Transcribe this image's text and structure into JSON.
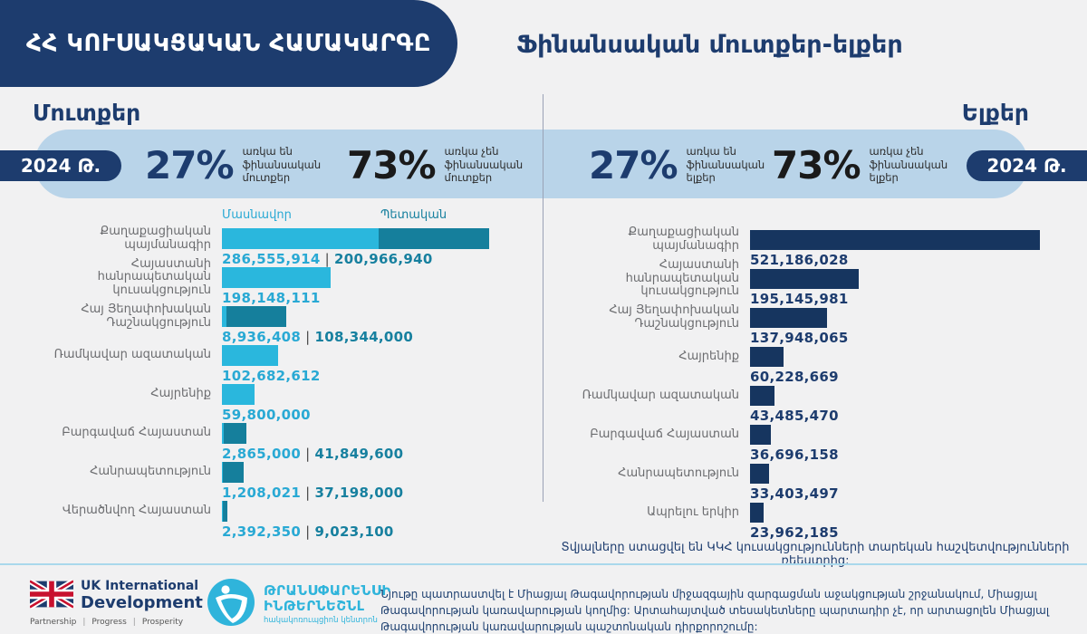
{
  "header": {
    "app_title": "ՀՀ ԿՈՒՍԱԿՑԱԿԱՆ ՀԱՄԱԿԱՐԳԸ",
    "page_title": "Ֆինանսական մուտքեր-ելքեր"
  },
  "colors": {
    "navy": "#1d3c6e",
    "navy_bar": "#16355f",
    "light_blue": "#b9d4e9",
    "cyan": "#2ab7dd",
    "teal": "#157f9c",
    "cyan_text": "#29a9d4",
    "teal_text": "#17809f",
    "pct_dark": "#1a1a1a",
    "label_gray": "#6b6c6f",
    "bg": "#f1f1f2",
    "divider": "#9aa2b6",
    "footer_line": "#a9d8ec",
    "ti_cyan": "#2fb4db",
    "uk_red": "#c8102e"
  },
  "left_section": {
    "heading": "Մուտքեր",
    "year_badge": "2024 Թ.",
    "stats": [
      {
        "value": "27%",
        "label": "առկա են ֆինանսական մուտքեր"
      },
      {
        "value": "73%",
        "label": "առկա չեն ֆինանսական մուտքեր"
      }
    ]
  },
  "right_section": {
    "heading": "Ելքեր",
    "year_badge": "2024 Թ.",
    "stats": [
      {
        "value": "27%",
        "label": "առկա են ֆինանսական ելքեր"
      },
      {
        "value": "73%",
        "label": "առկա չեն ֆինանսական ելքեր"
      }
    ]
  },
  "chart_data": [
    {
      "type": "bar",
      "stacked": true,
      "title": "Մուտքեր",
      "legend": [
        "Մասնավոր",
        "Պետական"
      ],
      "legend_position": "top",
      "categories": [
        "Քաղաքացիական պայմանագիր",
        "Հայաստանի հանրապետական կուսակցություն",
        "Հայ Յեղափոխական Դաշնակցություն",
        "Ռամկավար ազատական",
        "Հայրենիք",
        "Բարգավաճ Հայաստան",
        "Հանրապետություն",
        "Վերածնվող Հայաստան"
      ],
      "series": [
        {
          "name": "Մասնավոր",
          "values": [
            286555914,
            198148111,
            8936408,
            102682612,
            59800000,
            2865000,
            1208021,
            2392350
          ]
        },
        {
          "name": "Պետական",
          "values": [
            200966940,
            null,
            108344000,
            null,
            null,
            41849600,
            37198000,
            9023100
          ]
        }
      ],
      "xlim": [
        0,
        487522854
      ],
      "value_labels": true
    },
    {
      "type": "bar",
      "stacked": false,
      "title": "Ելքեր",
      "categories": [
        "Քաղաքացիական պայմանագիր",
        "Հայաստանի հանրապետական կուսակցություն",
        "Հայ Յեղափոխական Դաշնակցություն",
        "Հայրենիք",
        "Ռամկավար ազատական",
        "Բարգավաճ Հայաստան",
        "Հանրապետություն",
        "Ապրելու երկիր"
      ],
      "values": [
        521186028,
        195145981,
        137948065,
        60228669,
        43485470,
        36696158,
        33403497,
        23962185
      ],
      "xlim": [
        0,
        521186028
      ],
      "value_labels": true
    }
  ],
  "footnote": "Տվյալները ստացվել են ԿԿՀ կուսակցությունների տարեկան հաշվետվությունների ռեեստրից:",
  "footer": {
    "uk_logo": {
      "line1": "UK International",
      "line2": "Development",
      "tagline_parts": [
        "Partnership",
        "Progress",
        "Prosperity"
      ]
    },
    "ti_logo": {
      "line1": "ԹՐԱՆՍՓԱՐԵՆՍԻ",
      "line2": "ԻՆԹԵՐՆԵՇՆԼ",
      "tagline": "հակակոռուպցիոն կենտրոն"
    },
    "disclaimer": "Նյութը պատրաստվել է Միացյալ Թագավորության միջազգային զարգացման աջակցության շրջանակում, Միացյալ Թագավորության կառավարության կողմից:  Արտահայտված տեսակետները պարտադիր չէ, որ արտացոլեն Միացյալ Թագավորության կառավարության պաշտոնական դիրքորոշումը:"
  }
}
